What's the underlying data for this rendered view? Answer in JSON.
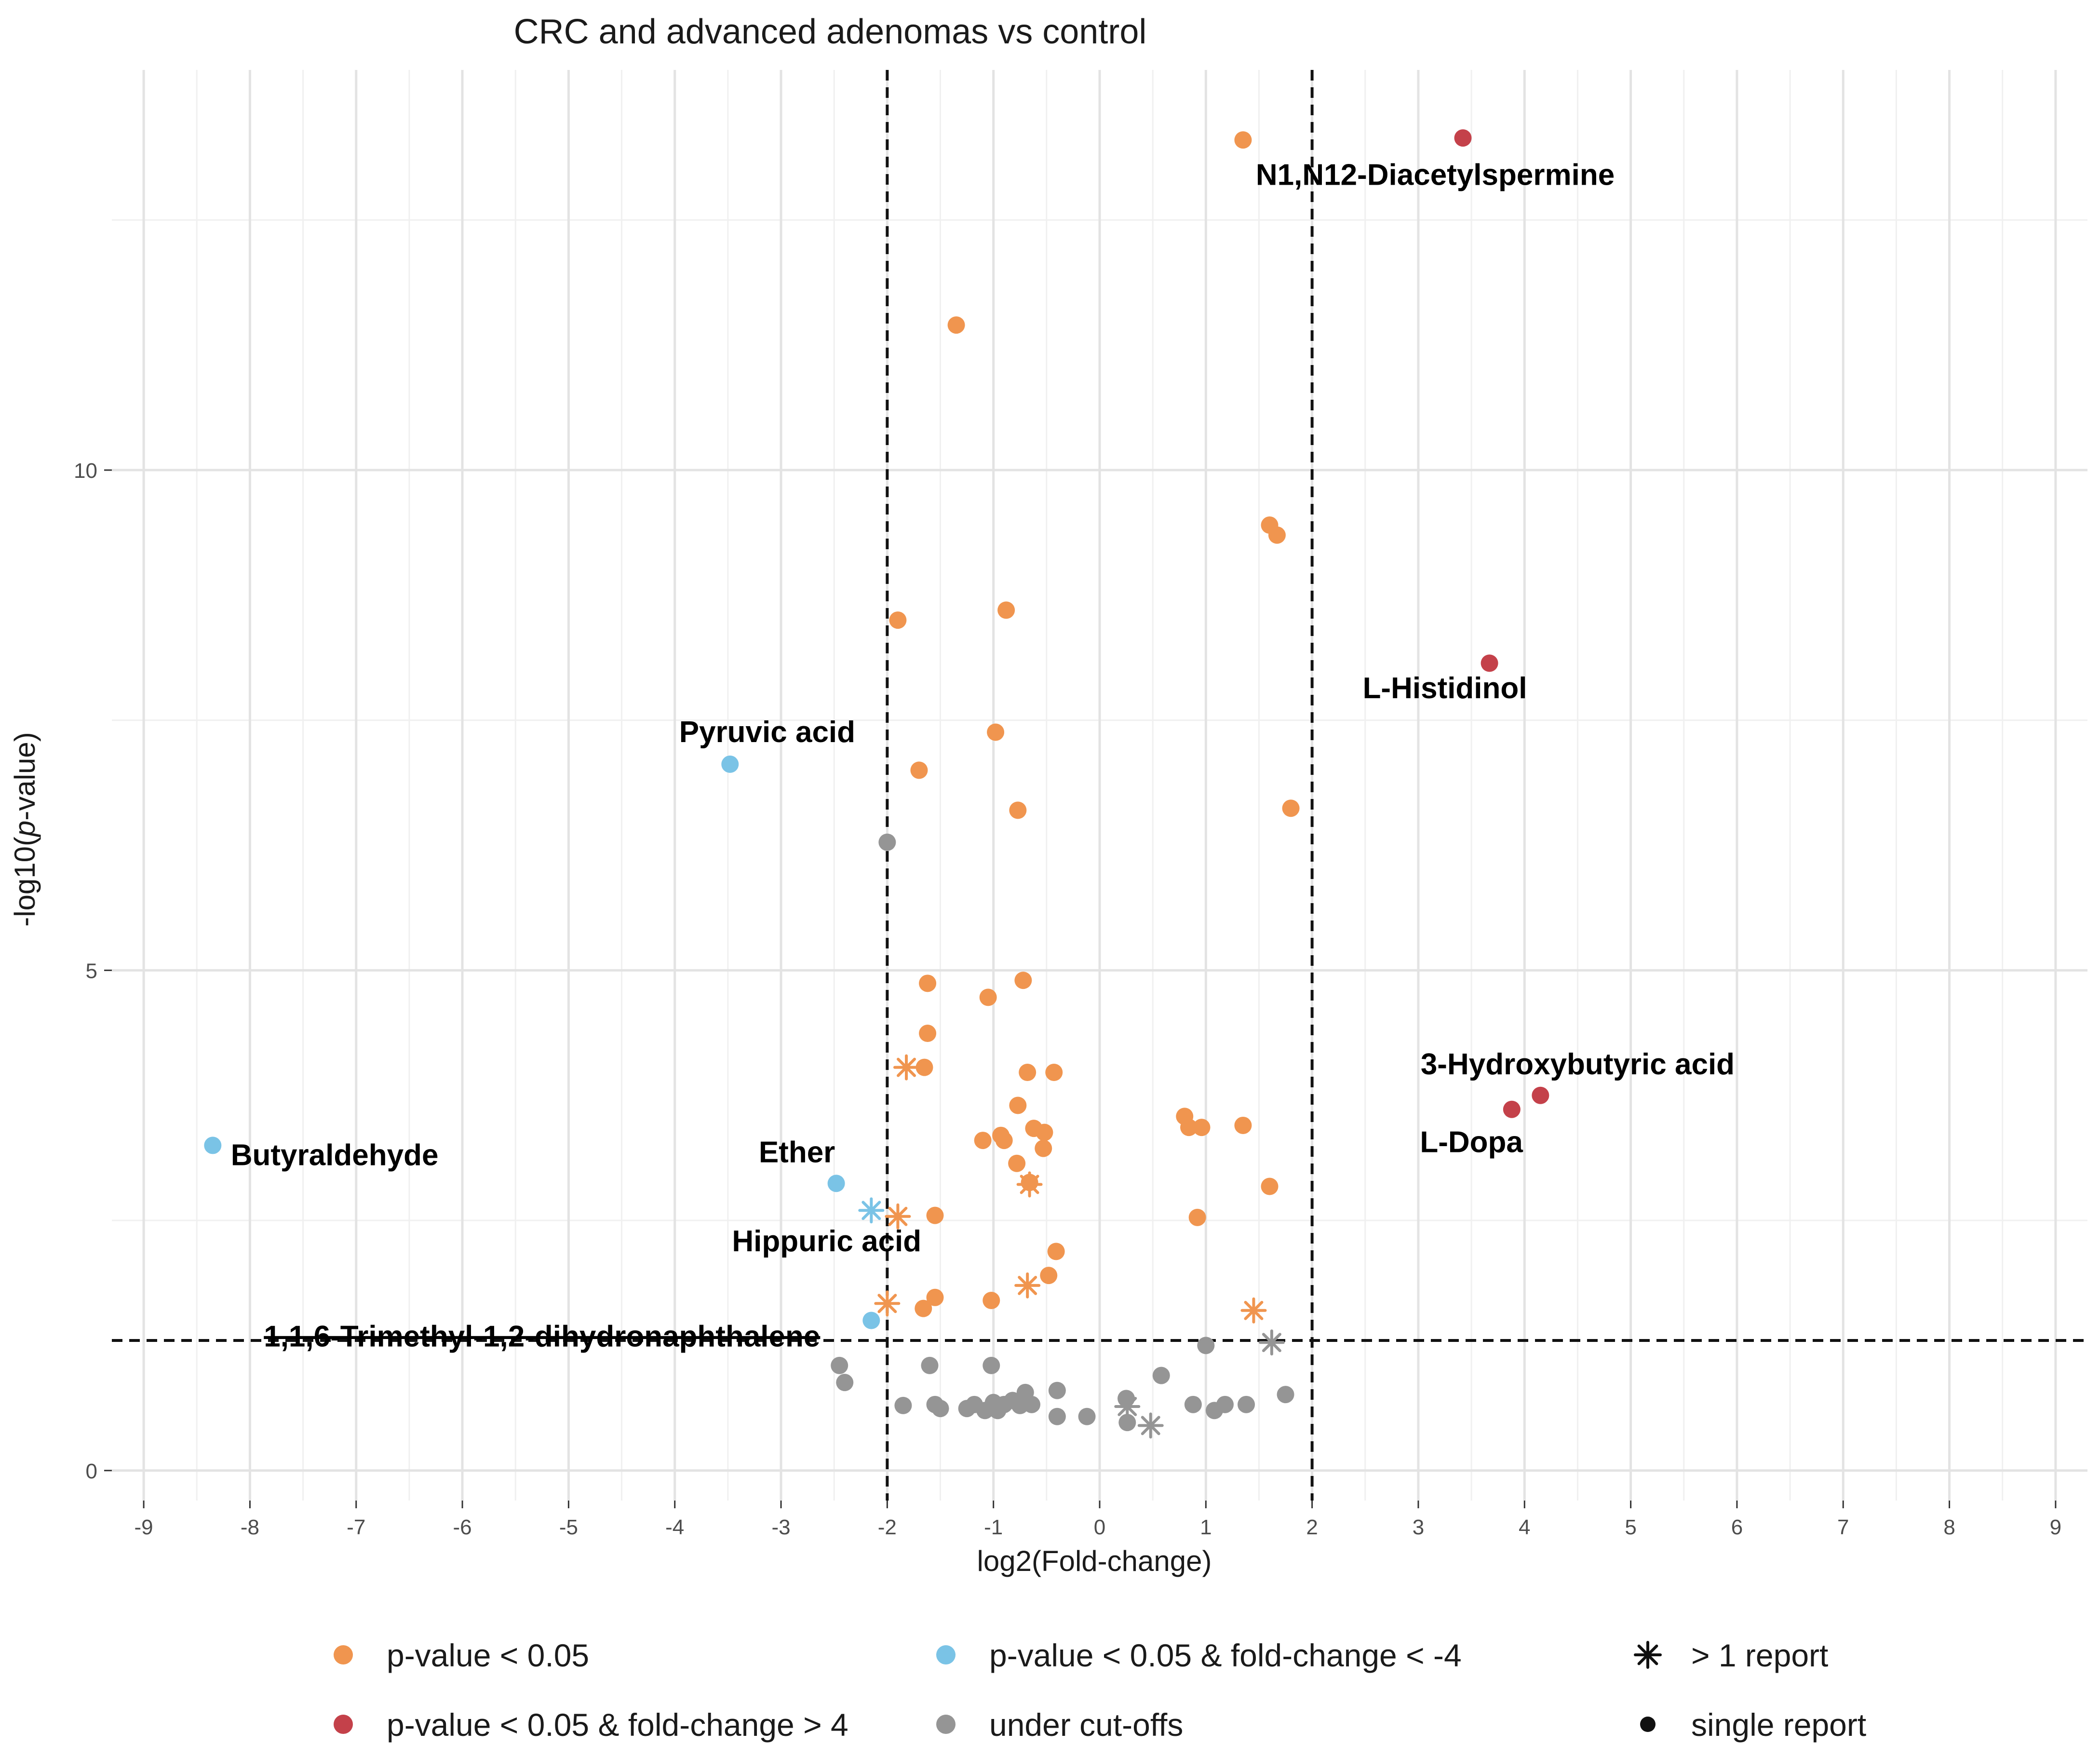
{
  "chart_data": {
    "type": "scatter",
    "title": "CRC and advanced adenomas vs control",
    "xlabel": "log2(Fold-change)",
    "ylabel_prefix": "-log10(",
    "ylabel_italic": "p",
    "ylabel_suffix": "-value)",
    "xlim": [
      -9.3,
      9.3
    ],
    "ylim": [
      -0.3,
      14.0
    ],
    "x_ticks": [
      -9,
      -8,
      -7,
      -6,
      -5,
      -4,
      -3,
      -2,
      -1,
      0,
      1,
      2,
      3,
      4,
      5,
      6,
      7,
      8,
      9
    ],
    "x_tick_labels": [
      "-9",
      "-8",
      "-7",
      "-6",
      "-5",
      "-4",
      "-3",
      "-2",
      "-1",
      "0",
      "1",
      "2",
      "3",
      "4",
      "5",
      "6",
      "7",
      "8",
      "9"
    ],
    "y_ticks": [
      0,
      5,
      10
    ],
    "y_tick_labels": [
      "0",
      "5",
      "10"
    ],
    "grid": true,
    "thresholds": {
      "x": [
        -2,
        2
      ],
      "y": 1.3
    },
    "colors": {
      "sig": "#F0954F",
      "neg": "#7AC3E6",
      "pos": "#C4414A",
      "ns": "#959595",
      "black": "#111111"
    },
    "series": [
      {
        "name": "p-value <  0.05",
        "key": "sig",
        "points": [
          {
            "x": 1.35,
            "y": 13.3,
            "shape": "dot"
          },
          {
            "x": -1.35,
            "y": 11.45,
            "shape": "dot"
          },
          {
            "x": 1.6,
            "y": 9.45,
            "shape": "dot"
          },
          {
            "x": 1.67,
            "y": 9.35,
            "shape": "dot"
          },
          {
            "x": -1.9,
            "y": 8.5,
            "shape": "dot"
          },
          {
            "x": -0.88,
            "y": 8.6,
            "shape": "dot"
          },
          {
            "x": -0.98,
            "y": 7.38,
            "shape": "dot"
          },
          {
            "x": -1.7,
            "y": 7.0,
            "shape": "dot"
          },
          {
            "x": -0.77,
            "y": 6.6,
            "shape": "dot"
          },
          {
            "x": 1.8,
            "y": 6.62,
            "shape": "dot"
          },
          {
            "x": -1.62,
            "y": 4.87,
            "shape": "dot"
          },
          {
            "x": -1.05,
            "y": 4.73,
            "shape": "dot"
          },
          {
            "x": -0.72,
            "y": 4.9,
            "shape": "dot"
          },
          {
            "x": -1.62,
            "y": 4.37,
            "shape": "dot"
          },
          {
            "x": -1.65,
            "y": 4.03,
            "shape": "dot"
          },
          {
            "x": -1.82,
            "y": 4.03,
            "shape": "star"
          },
          {
            "x": -0.68,
            "y": 3.98,
            "shape": "dot"
          },
          {
            "x": -0.43,
            "y": 3.98,
            "shape": "dot"
          },
          {
            "x": -0.77,
            "y": 3.65,
            "shape": "dot"
          },
          {
            "x": -0.62,
            "y": 3.42,
            "shape": "dot"
          },
          {
            "x": -0.52,
            "y": 3.38,
            "shape": "dot"
          },
          {
            "x": -0.93,
            "y": 3.35,
            "shape": "dot"
          },
          {
            "x": -1.1,
            "y": 3.3,
            "shape": "dot"
          },
          {
            "x": -0.9,
            "y": 3.3,
            "shape": "dot"
          },
          {
            "x": -0.53,
            "y": 3.22,
            "shape": "dot"
          },
          {
            "x": -0.78,
            "y": 3.07,
            "shape": "dot"
          },
          {
            "x": -0.66,
            "y": 2.88,
            "shape": "dot"
          },
          {
            "x": -0.66,
            "y": 2.86,
            "shape": "star"
          },
          {
            "x": 0.8,
            "y": 3.54,
            "shape": "dot"
          },
          {
            "x": 0.84,
            "y": 3.43,
            "shape": "dot"
          },
          {
            "x": 0.96,
            "y": 3.43,
            "shape": "dot"
          },
          {
            "x": 1.35,
            "y": 3.45,
            "shape": "dot"
          },
          {
            "x": 1.6,
            "y": 2.84,
            "shape": "dot"
          },
          {
            "x": -1.55,
            "y": 2.55,
            "shape": "dot"
          },
          {
            "x": -1.9,
            "y": 2.54,
            "shape": "star"
          },
          {
            "x": 0.92,
            "y": 2.53,
            "shape": "dot"
          },
          {
            "x": -0.41,
            "y": 2.19,
            "shape": "dot"
          },
          {
            "x": -0.48,
            "y": 1.95,
            "shape": "dot"
          },
          {
            "x": -0.68,
            "y": 1.85,
            "shape": "star"
          },
          {
            "x": -1.55,
            "y": 1.73,
            "shape": "dot"
          },
          {
            "x": -1.02,
            "y": 1.7,
            "shape": "dot"
          },
          {
            "x": -1.66,
            "y": 1.62,
            "shape": "dot"
          },
          {
            "x": -2.0,
            "y": 1.67,
            "shape": "star"
          },
          {
            "x": 1.45,
            "y": 1.6,
            "shape": "star"
          }
        ]
      },
      {
        "name": "p-value <  0.05 & fold-change <  -4",
        "key": "neg",
        "points": [
          {
            "x": -3.48,
            "y": 7.06,
            "shape": "dot"
          },
          {
            "x": -8.35,
            "y": 3.25,
            "shape": "dot"
          },
          {
            "x": -2.48,
            "y": 2.87,
            "shape": "dot"
          },
          {
            "x": -2.15,
            "y": 2.6,
            "shape": "star"
          },
          {
            "x": -2.15,
            "y": 1.5,
            "shape": "dot"
          }
        ]
      },
      {
        "name": "p-value < 0.05 & fold-change > 4",
        "key": "pos",
        "points": [
          {
            "x": 3.42,
            "y": 13.32,
            "shape": "dot"
          },
          {
            "x": 3.67,
            "y": 8.07,
            "shape": "dot"
          },
          {
            "x": 4.15,
            "y": 3.75,
            "shape": "dot"
          },
          {
            "x": 3.88,
            "y": 3.61,
            "shape": "dot"
          }
        ]
      },
      {
        "name": "under cut-offs",
        "key": "ns",
        "points": [
          {
            "x": -2.0,
            "y": 6.28,
            "shape": "dot"
          },
          {
            "x": -2.45,
            "y": 1.05,
            "shape": "dot"
          },
          {
            "x": -2.4,
            "y": 0.88,
            "shape": "dot"
          },
          {
            "x": -1.6,
            "y": 1.05,
            "shape": "dot"
          },
          {
            "x": -1.02,
            "y": 1.05,
            "shape": "dot"
          },
          {
            "x": -1.85,
            "y": 0.65,
            "shape": "dot"
          },
          {
            "x": -1.55,
            "y": 0.66,
            "shape": "dot"
          },
          {
            "x": -1.5,
            "y": 0.62,
            "shape": "dot"
          },
          {
            "x": -1.25,
            "y": 0.62,
            "shape": "dot"
          },
          {
            "x": -1.18,
            "y": 0.66,
            "shape": "dot"
          },
          {
            "x": -1.08,
            "y": 0.6,
            "shape": "dot"
          },
          {
            "x": -1.0,
            "y": 0.68,
            "shape": "dot"
          },
          {
            "x": -0.96,
            "y": 0.6,
            "shape": "dot"
          },
          {
            "x": -0.9,
            "y": 0.66,
            "shape": "dot"
          },
          {
            "x": -0.82,
            "y": 0.7,
            "shape": "dot"
          },
          {
            "x": -0.75,
            "y": 0.65,
            "shape": "dot"
          },
          {
            "x": -0.7,
            "y": 0.78,
            "shape": "dot"
          },
          {
            "x": -0.64,
            "y": 0.66,
            "shape": "dot"
          },
          {
            "x": -0.4,
            "y": 0.8,
            "shape": "dot"
          },
          {
            "x": -0.4,
            "y": 0.54,
            "shape": "dot"
          },
          {
            "x": -0.12,
            "y": 0.54,
            "shape": "dot"
          },
          {
            "x": 0.25,
            "y": 0.72,
            "shape": "dot"
          },
          {
            "x": 0.26,
            "y": 0.64,
            "shape": "star"
          },
          {
            "x": 0.26,
            "y": 0.48,
            "shape": "dot"
          },
          {
            "x": 0.48,
            "y": 0.45,
            "shape": "star"
          },
          {
            "x": 0.58,
            "y": 0.95,
            "shape": "dot"
          },
          {
            "x": 0.88,
            "y": 0.66,
            "shape": "dot"
          },
          {
            "x": 1.08,
            "y": 0.6,
            "shape": "dot"
          },
          {
            "x": 1.18,
            "y": 0.66,
            "shape": "dot"
          },
          {
            "x": 1.38,
            "y": 0.66,
            "shape": "dot"
          },
          {
            "x": 1.75,
            "y": 0.76,
            "shape": "dot"
          },
          {
            "x": 1.0,
            "y": 1.25,
            "shape": "dot"
          },
          {
            "x": 1.62,
            "y": 1.28,
            "shape": "star"
          }
        ]
      }
    ],
    "annotations": [
      {
        "text": "N1,N12-Diacetylspermine",
        "x": 1.47,
        "y": 12.93,
        "anchor": "start"
      },
      {
        "text": "L-Histidinol",
        "x": 3.25,
        "y": 7.8,
        "anchor": "middle"
      },
      {
        "text": "Pyruvic acid",
        "x": -3.13,
        "y": 7.36,
        "anchor": "middle"
      },
      {
        "text": "3-Hydroxybutyric acid",
        "x": 4.5,
        "y": 4.04,
        "anchor": "middle"
      },
      {
        "text": "L-Dopa",
        "x": 3.5,
        "y": 3.26,
        "anchor": "middle"
      },
      {
        "text": "Butyraldehyde",
        "x": -8.18,
        "y": 3.13,
        "anchor": "start"
      },
      {
        "text": "Ether",
        "x": -2.85,
        "y": 3.16,
        "anchor": "middle"
      },
      {
        "text": "Hippuric acid",
        "x": -2.57,
        "y": 2.27,
        "anchor": "middle"
      },
      {
        "text": "1,1,6-Trimethyl-1,2-dihydronaphthalene",
        "x": -5.25,
        "y": 1.32,
        "anchor": "middle",
        "strike": true
      }
    ],
    "legend": [
      {
        "label": "p-value <  0.05",
        "symbol": "dot",
        "key": "sig"
      },
      {
        "label": "p-value <  0.05 & fold-change <  -4",
        "symbol": "dot",
        "key": "neg"
      },
      {
        "label": "> 1 report",
        "symbol": "star",
        "key": "black"
      },
      {
        "label": "p-value < 0.05 & fold-change > 4",
        "symbol": "dot",
        "key": "pos"
      },
      {
        "label": "under cut-offs",
        "symbol": "dot",
        "key": "ns"
      },
      {
        "label": "single report",
        "symbol": "smalldot",
        "key": "black"
      }
    ]
  }
}
